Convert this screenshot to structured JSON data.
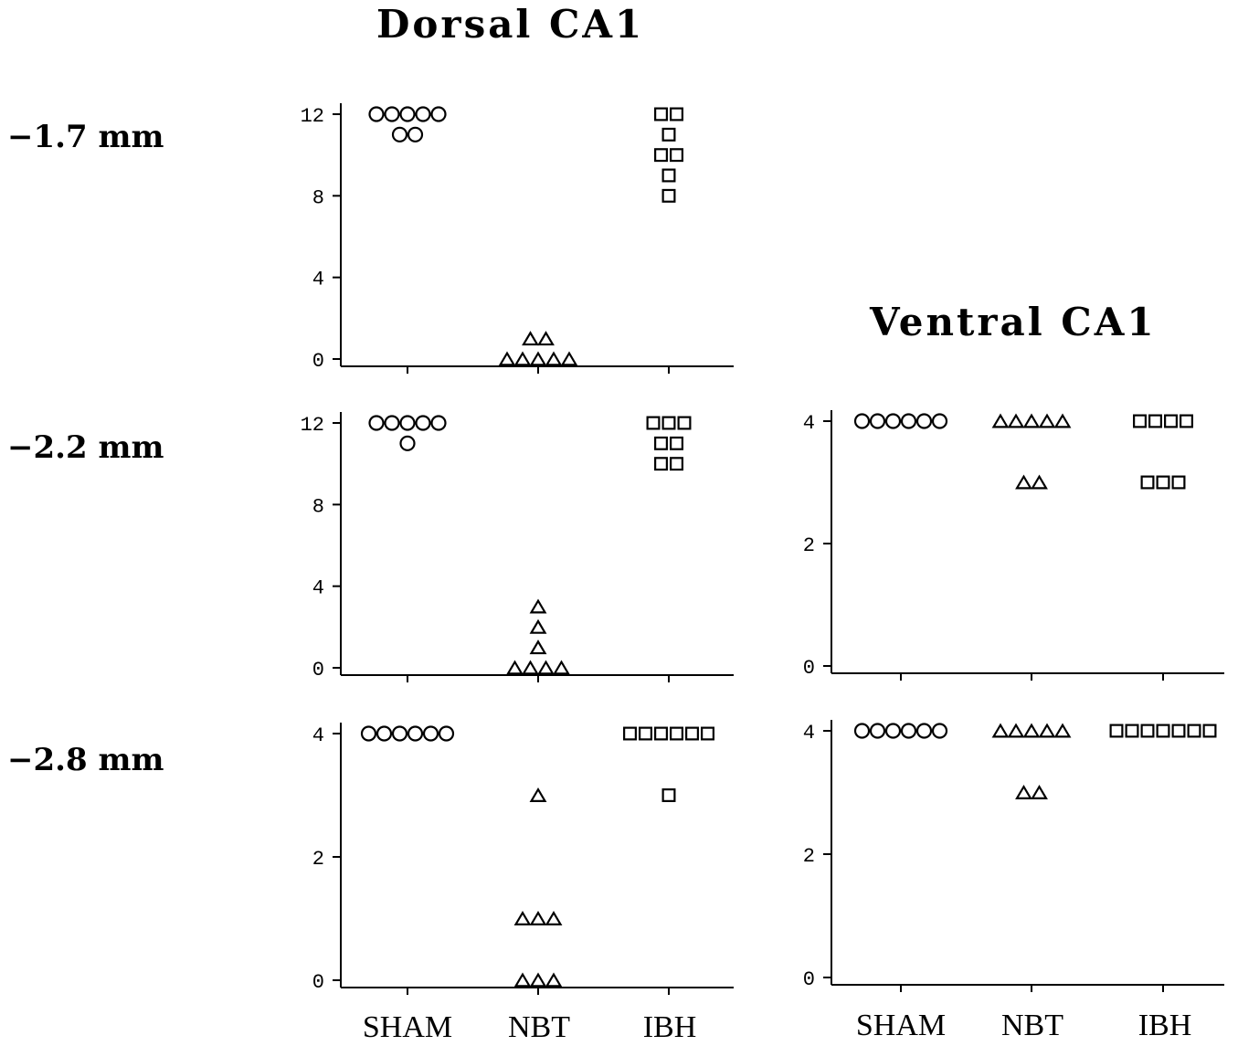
{
  "titles": {
    "dorsal": "Dorsal CA1",
    "ventral": "Ventral CA1"
  },
  "row_labels": [
    "−1.7 mm",
    "−2.2 mm",
    "−2.8 mm"
  ],
  "categories": [
    "SHAM",
    "NBT",
    "IBH"
  ],
  "chart_data": [
    {
      "type": "scatter",
      "panel": "dorsal-1.7",
      "ylim": [
        0,
        12
      ],
      "yticks": [
        0,
        4,
        8,
        12
      ],
      "categories": [
        "SHAM",
        "NBT",
        "IBH"
      ],
      "series": [
        {
          "marker": "circle",
          "values": [
            12,
            12,
            12,
            12,
            12,
            11,
            11
          ]
        },
        {
          "marker": "triangle",
          "values": [
            1,
            1,
            0,
            0,
            0,
            0,
            0
          ]
        },
        {
          "marker": "square",
          "values": [
            12,
            12,
            11,
            10,
            10,
            9,
            8
          ]
        }
      ]
    },
    {
      "type": "scatter",
      "panel": "dorsal-2.2",
      "ylim": [
        0,
        12
      ],
      "yticks": [
        0,
        4,
        8,
        12
      ],
      "categories": [
        "SHAM",
        "NBT",
        "IBH"
      ],
      "series": [
        {
          "marker": "circle",
          "values": [
            12,
            12,
            12,
            12,
            12,
            11
          ]
        },
        {
          "marker": "triangle",
          "values": [
            3,
            2,
            1,
            0,
            0,
            0,
            0
          ]
        },
        {
          "marker": "square",
          "values": [
            12,
            12,
            12,
            11,
            11,
            10,
            10
          ]
        }
      ]
    },
    {
      "type": "scatter",
      "panel": "dorsal-2.8",
      "ylim": [
        0,
        4
      ],
      "yticks": [
        0,
        2,
        4
      ],
      "categories": [
        "SHAM",
        "NBT",
        "IBH"
      ],
      "series": [
        {
          "marker": "circle",
          "values": [
            4,
            4,
            4,
            4,
            4,
            4
          ]
        },
        {
          "marker": "triangle",
          "values": [
            3,
            1,
            1,
            1,
            0,
            0,
            0
          ]
        },
        {
          "marker": "square",
          "values": [
            4,
            4,
            4,
            4,
            4,
            4,
            3
          ]
        }
      ]
    },
    {
      "type": "scatter",
      "panel": "ventral-2.2",
      "ylim": [
        0,
        4
      ],
      "yticks": [
        0,
        2,
        4
      ],
      "categories": [
        "SHAM",
        "NBT",
        "IBH"
      ],
      "series": [
        {
          "marker": "circle",
          "values": [
            4,
            4,
            4,
            4,
            4,
            4
          ]
        },
        {
          "marker": "triangle",
          "values": [
            4,
            4,
            4,
            4,
            4,
            3,
            3
          ]
        },
        {
          "marker": "square",
          "values": [
            4,
            4,
            4,
            4,
            3,
            3,
            3
          ]
        }
      ]
    },
    {
      "type": "scatter",
      "panel": "ventral-2.8",
      "ylim": [
        0,
        4
      ],
      "yticks": [
        0,
        2,
        4
      ],
      "categories": [
        "SHAM",
        "NBT",
        "IBH"
      ],
      "series": [
        {
          "marker": "circle",
          "values": [
            4,
            4,
            4,
            4,
            4,
            4
          ]
        },
        {
          "marker": "triangle",
          "values": [
            4,
            4,
            4,
            4,
            4,
            3,
            3
          ]
        },
        {
          "marker": "square",
          "values": [
            4,
            4,
            4,
            4,
            4,
            4,
            4
          ]
        }
      ]
    }
  ]
}
